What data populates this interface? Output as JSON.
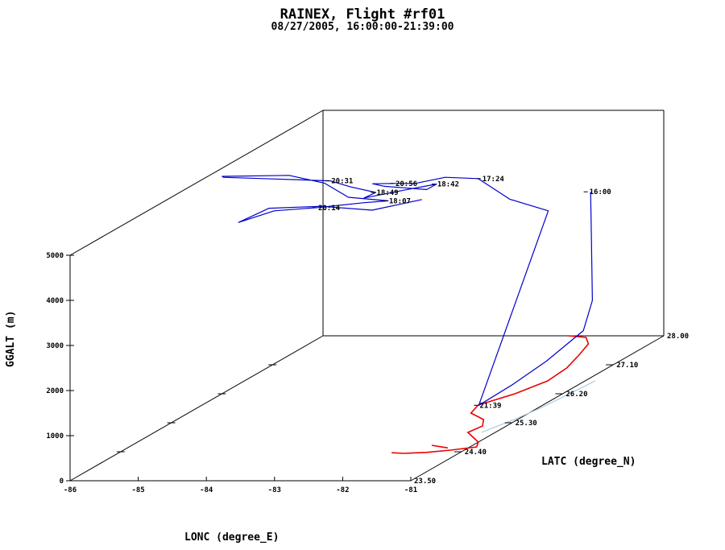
{
  "title": "RAINEX, Flight #rf01",
  "subtitle": "08/27/2005, 16:00:00-21:39:00",
  "chart_data": {
    "type": "line3d",
    "xlabel": "LONC (degree_E)",
    "ylabel": "LATC (degree_N)",
    "zlabel": "GGALT (m)",
    "xlim": [
      -86,
      -81
    ],
    "ylim": [
      23.5,
      28.0
    ],
    "zlim": [
      0,
      5000
    ],
    "xticks": [
      "-86",
      "-85",
      "-84",
      "-83",
      "-82",
      "-81"
    ],
    "yticks": [
      "23.50",
      "24.40",
      "25.30",
      "26.20",
      "27.10",
      "28.00"
    ],
    "zticks": [
      "0",
      "1000",
      "2000",
      "3000",
      "4000",
      "5000"
    ],
    "flight_color": "#0000cc",
    "coast_color": "#ee0000",
    "ground_track_color": "#a8c8e0",
    "time_labels": [
      {
        "time": "16:00",
        "lon": -81.98,
        "lat": 27.85,
        "alt": 3300
      },
      {
        "time": "17:24",
        "lon": -82.85,
        "lat": 27.0,
        "alt": 4200
      },
      {
        "time": "18:42",
        "lon": -82.85,
        "lat": 26.2,
        "alt": 4650
      },
      {
        "time": "20:56",
        "lon": -84.0,
        "lat": 26.85,
        "alt": 4200
      },
      {
        "time": "20:31",
        "lon": -84.2,
        "lat": 25.95,
        "alt": 4900
      },
      {
        "time": "18:49",
        "lon": -83.7,
        "lat": 26.15,
        "alt": 4500
      },
      {
        "time": "18:07",
        "lon": -82.9,
        "lat": 25.4,
        "alt": 4850
      },
      {
        "time": "20:14",
        "lon": -83.65,
        "lat": 25.05,
        "alt": 4950
      },
      {
        "time": "21:39",
        "lon": -81.9,
        "lat": 25.8,
        "alt": 30
      }
    ],
    "flight_path": [
      [
        -81.95,
        27.85,
        3300
      ],
      [
        -81.9,
        27.8,
        2600
      ],
      [
        -81.85,
        27.75,
        1800
      ],
      [
        -81.8,
        27.7,
        1000
      ],
      [
        -81.85,
        27.6,
        400
      ],
      [
        -81.9,
        27.0,
        150
      ],
      [
        -81.9,
        26.4,
        60
      ],
      [
        -81.9,
        25.8,
        30
      ],
      [
        -82.2,
        27.4,
        3200
      ],
      [
        -82.6,
        27.2,
        3600
      ],
      [
        -82.9,
        27.0,
        4200
      ],
      [
        -83.3,
        26.9,
        4300
      ],
      [
        -83.7,
        26.85,
        4200
      ],
      [
        -84.0,
        26.85,
        4200
      ],
      [
        -84.2,
        26.7,
        4300
      ],
      [
        -83.9,
        26.55,
        4350
      ],
      [
        -83.2,
        26.45,
        4350
      ],
      [
        -82.85,
        26.2,
        4650
      ],
      [
        -83.1,
        25.95,
        4700
      ],
      [
        -83.5,
        25.7,
        4700
      ],
      [
        -83.7,
        26.15,
        4500
      ],
      [
        -84.0,
        26.05,
        4700
      ],
      [
        -84.2,
        25.95,
        4900
      ],
      [
        -84.9,
        25.6,
        5200
      ],
      [
        -85.4,
        25.5,
        5300
      ],
      [
        -85.5,
        25.6,
        5250
      ],
      [
        -84.6,
        25.7,
        5200
      ],
      [
        -84.0,
        25.6,
        5100
      ],
      [
        -83.4,
        25.3,
        5000
      ],
      [
        -82.9,
        25.4,
        4850
      ],
      [
        -83.1,
        25.2,
        4950
      ],
      [
        -83.65,
        25.05,
        4950
      ],
      [
        -84.2,
        24.95,
        4950
      ],
      [
        -84.6,
        24.8,
        4800
      ],
      [
        -84.4,
        25.1,
        4900
      ],
      [
        -83.8,
        25.3,
        4800
      ],
      [
        -83.3,
        25.6,
        4500
      ],
      [
        -82.9,
        26.0,
        4450
      ]
    ],
    "coastline": [
      [
        [
          -81.95,
          25.85
        ],
        [
          -81.7,
          26.2
        ],
        [
          -81.55,
          26.6
        ],
        [
          -81.6,
          27.0
        ],
        [
          -81.75,
          27.4
        ],
        [
          -81.9,
          27.75
        ],
        [
          -82.1,
          27.95
        ],
        [
          -82.4,
          28.0
        ]
      ],
      [
        [
          -81.95,
          25.85
        ],
        [
          -81.85,
          25.6
        ],
        [
          -81.5,
          25.4
        ],
        [
          -81.35,
          25.2
        ],
        [
          -81.4,
          25.0
        ],
        [
          -81.2,
          24.85
        ],
        [
          -81.0,
          24.7
        ]
      ],
      [
        [
          -81.0,
          24.7
        ],
        [
          -80.9,
          24.55
        ],
        [
          -81.2,
          24.45
        ],
        [
          -81.5,
          24.38
        ],
        [
          -81.8,
          24.35
        ],
        [
          -82.0,
          24.37
        ]
      ],
      [
        [
          -81.6,
          24.6
        ],
        [
          -81.3,
          24.52
        ]
      ]
    ],
    "ground_track": [
      [
        -81.2,
        25.0
      ],
      [
        -81.05,
        25.4
      ],
      [
        -80.95,
        25.8
      ],
      [
        -80.9,
        26.2
      ],
      [
        -80.85,
        26.6
      ]
    ]
  }
}
